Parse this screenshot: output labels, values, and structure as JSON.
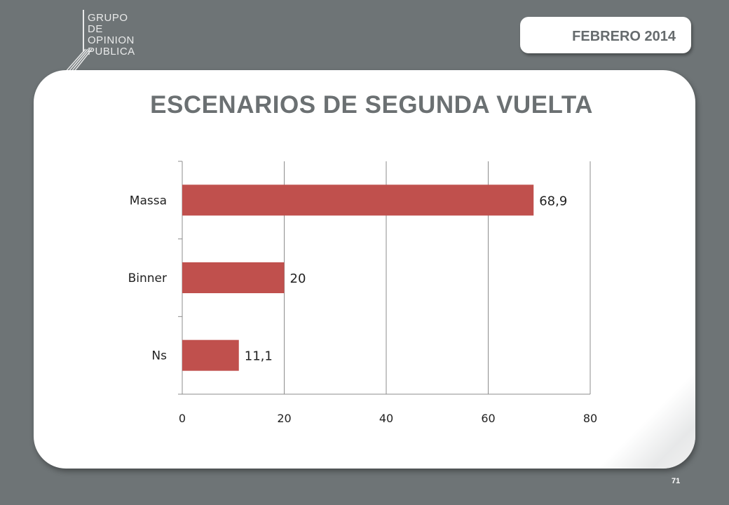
{
  "header": {
    "logo_lines": [
      "GRUPO",
      "DE",
      "OPINION",
      "PUBLICA"
    ],
    "date_label": "FEBRERO 2014"
  },
  "slide": {
    "title": "ESCENARIOS DE SEGUNDA VUELTA",
    "page_number": "71"
  },
  "chart_data": {
    "type": "bar",
    "orientation": "horizontal",
    "categories": [
      "Massa",
      "Binner",
      "Ns"
    ],
    "values": [
      68.9,
      20,
      11.1
    ],
    "value_labels": [
      "68,9",
      "20",
      "11,1"
    ],
    "xlim": [
      0,
      80
    ],
    "x_ticks": [
      0,
      20,
      40,
      60,
      80
    ],
    "grid": true,
    "bar_color": "#c0504d"
  }
}
